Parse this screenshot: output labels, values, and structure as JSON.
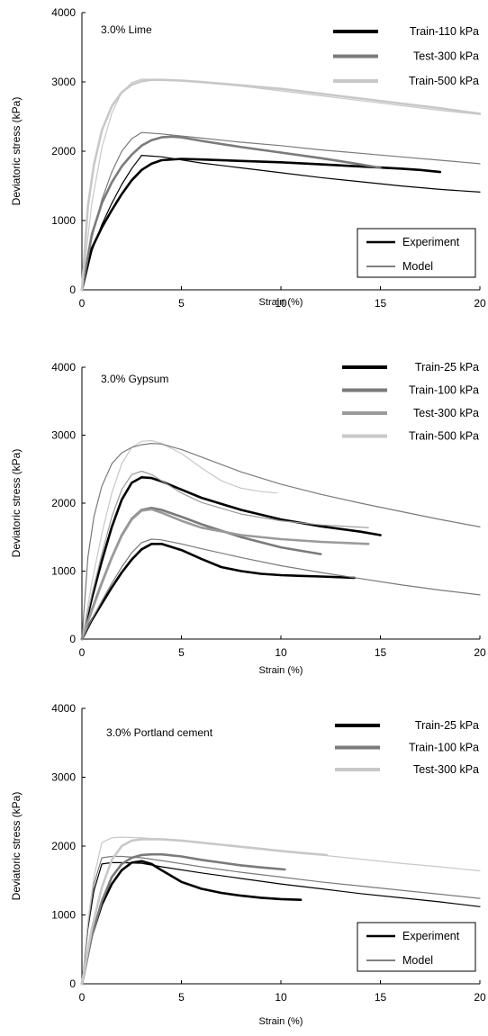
{
  "colors": {
    "black": "#000000",
    "dark_gray": "#7a7a7a",
    "mid_gray": "#9a9a9a",
    "light_gray": "#c8c8c8"
  },
  "chart_data": [
    {
      "type": "line",
      "annotation": "3.0% Lime",
      "xlabel": "Strain (%)",
      "ylabel": "Deviatoric stress (kPa)",
      "xlim": [
        0,
        20
      ],
      "ylim": [
        0,
        4000
      ],
      "xticks": [
        0,
        5,
        10,
        15,
        20
      ],
      "yticks": [
        0,
        1000,
        2000,
        3000,
        4000
      ],
      "grid": false,
      "legend_position": "top-right",
      "legend": [
        {
          "name": "Train-110 kPa",
          "color": "#000000"
        },
        {
          "name": "Test-300 kPa",
          "color": "#7a7a7a"
        },
        {
          "name": "Train-500 kPa",
          "color": "#c8c8c8"
        }
      ],
      "style_legend": [
        {
          "name": "Experiment",
          "style": "thick"
        },
        {
          "name": "Model",
          "style": "thin"
        }
      ],
      "series": [
        {
          "legend": "Train-110 kPa",
          "kind": "experiment",
          "color": "#000000",
          "x": [
            0,
            0.5,
            1,
            1.5,
            2,
            2.5,
            3,
            3.5,
            4,
            5,
            6,
            8,
            10,
            12,
            14,
            16,
            17,
            18
          ],
          "y": [
            0,
            600,
            900,
            1150,
            1380,
            1580,
            1730,
            1820,
            1870,
            1890,
            1880,
            1860,
            1840,
            1810,
            1780,
            1750,
            1730,
            1700
          ]
        },
        {
          "legend": "Train-110 kPa",
          "kind": "model",
          "color": "#000000",
          "x": [
            0,
            0.5,
            1,
            1.5,
            2,
            2.5,
            3,
            4,
            6,
            8,
            10,
            12,
            14,
            16,
            18,
            20
          ],
          "y": [
            0,
            560,
            940,
            1250,
            1520,
            1750,
            1940,
            1920,
            1830,
            1760,
            1690,
            1620,
            1560,
            1500,
            1450,
            1410
          ]
        },
        {
          "legend": "Test-300 kPa",
          "kind": "experiment",
          "color": "#7a7a7a",
          "x": [
            0,
            0.5,
            1,
            1.5,
            2,
            2.5,
            3,
            3.5,
            4,
            4.5,
            5,
            6,
            8,
            10,
            12,
            14,
            15
          ],
          "y": [
            0,
            800,
            1250,
            1550,
            1780,
            1950,
            2080,
            2160,
            2200,
            2210,
            2200,
            2150,
            2060,
            1980,
            1900,
            1810,
            1760
          ]
        },
        {
          "legend": "Test-300 kPa",
          "kind": "model",
          "color": "#7a7a7a",
          "x": [
            0,
            0.5,
            1,
            1.5,
            2,
            2.5,
            3,
            4,
            6,
            8,
            10,
            12,
            14,
            16,
            18,
            20
          ],
          "y": [
            0,
            750,
            1300,
            1700,
            2000,
            2180,
            2270,
            2250,
            2190,
            2130,
            2080,
            2020,
            1970,
            1920,
            1870,
            1820
          ]
        },
        {
          "legend": "Train-500 kPa",
          "kind": "experiment",
          "color": "#c8c8c8",
          "x": [
            0,
            0.3,
            0.6,
            1,
            1.5,
            2,
            2.5,
            3,
            3.5,
            4,
            5,
            6,
            8,
            10,
            12,
            14,
            16,
            18,
            20
          ],
          "y": [
            0,
            1200,
            1800,
            2300,
            2650,
            2850,
            2960,
            3010,
            3030,
            3030,
            3020,
            3000,
            2950,
            2900,
            2830,
            2760,
            2690,
            2620,
            2540
          ]
        },
        {
          "legend": "Train-500 kPa",
          "kind": "model",
          "color": "#c8c8c8",
          "x": [
            0,
            0.5,
            1,
            1.5,
            2,
            2.5,
            3,
            4,
            6,
            8,
            10,
            12,
            14,
            16,
            18,
            20
          ],
          "y": [
            0,
            1250,
            2050,
            2550,
            2850,
            2990,
            3040,
            3030,
            2990,
            2940,
            2870,
            2800,
            2730,
            2660,
            2590,
            2530
          ]
        }
      ]
    },
    {
      "type": "line",
      "annotation": "3.0% Gypsum",
      "xlabel": "Strain (%)",
      "ylabel": "Deviatoric stress (kPa)",
      "xlim": [
        0,
        20
      ],
      "ylim": [
        0,
        4000
      ],
      "xticks": [
        0,
        5,
        10,
        15,
        20
      ],
      "yticks": [
        0,
        1000,
        2000,
        3000,
        4000
      ],
      "grid": false,
      "legend_position": "top-right",
      "legend": [
        {
          "name": "Train-25 kPa",
          "color": "#000000"
        },
        {
          "name": "Train-100 kPa",
          "color": "#7a7a7a"
        },
        {
          "name": "Test-300 kPa",
          "color": "#9a9a9a"
        },
        {
          "name": "Train-500 kPa",
          "color": "#c8c8c8"
        }
      ],
      "series": [
        {
          "legend": "Train-25 kPa",
          "kind": "experiment",
          "color": "#000000",
          "x": [
            0,
            0.5,
            1,
            1.5,
            2,
            2.5,
            3,
            3.5,
            4,
            5,
            6,
            7,
            8,
            9,
            10,
            11,
            12,
            13,
            13.7
          ],
          "y": [
            0,
            280,
            520,
            760,
            980,
            1170,
            1320,
            1400,
            1400,
            1310,
            1180,
            1060,
            1000,
            960,
            940,
            930,
            920,
            910,
            900
          ]
        },
        {
          "legend": "Train-25 kPa",
          "kind": "experiment",
          "color": "#000000",
          "x": [
            0,
            0.5,
            1,
            1.5,
            2,
            2.5,
            3,
            3.5,
            4,
            5,
            6,
            8,
            10,
            12,
            14,
            15
          ],
          "y": [
            0,
            600,
            1150,
            1650,
            2050,
            2300,
            2380,
            2370,
            2320,
            2200,
            2080,
            1900,
            1760,
            1660,
            1580,
            1530
          ]
        },
        {
          "legend": "Train-100 kPa",
          "kind": "model",
          "color": "#7a7a7a",
          "x": [
            0,
            0.5,
            1,
            1.5,
            2,
            2.5,
            3,
            3.5,
            4,
            5,
            6,
            8,
            10,
            12,
            14,
            16,
            18,
            20
          ],
          "y": [
            0,
            290,
            560,
            820,
            1060,
            1270,
            1420,
            1470,
            1460,
            1400,
            1330,
            1200,
            1080,
            980,
            890,
            800,
            720,
            650
          ]
        },
        {
          "legend": "Train-100 kPa",
          "kind": "experiment",
          "color": "#7a7a7a",
          "x": [
            0,
            0.5,
            1,
            1.5,
            2,
            2.5,
            3,
            3.5,
            4,
            5,
            6,
            8,
            10,
            12
          ],
          "y": [
            0,
            430,
            830,
            1200,
            1530,
            1770,
            1900,
            1930,
            1900,
            1800,
            1690,
            1500,
            1350,
            1250
          ]
        },
        {
          "legend": "Test-300 kPa",
          "kind": "model",
          "color": "#9a9a9a",
          "x": [
            0,
            0.5,
            1,
            1.5,
            2,
            2.5,
            3,
            3.5,
            4,
            5,
            6,
            8,
            10,
            12,
            14.4
          ],
          "y": [
            0,
            660,
            1250,
            1800,
            2200,
            2420,
            2470,
            2420,
            2330,
            2150,
            2010,
            1840,
            1740,
            1680,
            1640
          ]
        },
        {
          "legend": "Test-300 kPa",
          "kind": "experiment",
          "color": "#9a9a9a",
          "x": [
            0,
            0.5,
            1,
            1.5,
            2,
            2.5,
            3,
            3.5,
            4,
            5,
            6,
            8,
            10,
            12,
            14.4
          ],
          "y": [
            0,
            420,
            820,
            1200,
            1520,
            1760,
            1890,
            1910,
            1860,
            1740,
            1640,
            1530,
            1470,
            1430,
            1400
          ]
        },
        {
          "legend": "Train-500 kPa",
          "kind": "model",
          "color": "#c8c8c8",
          "x": [
            0,
            0.5,
            1,
            1.5,
            2,
            2.5,
            3,
            3.5,
            4,
            5,
            6,
            7,
            8,
            9,
            9.8
          ],
          "y": [
            0,
            830,
            1550,
            2150,
            2580,
            2820,
            2910,
            2920,
            2880,
            2730,
            2520,
            2330,
            2220,
            2170,
            2150
          ]
        },
        {
          "legend": "Train-500 kPa",
          "kind": "model",
          "color": "#7a7a7a",
          "x": [
            0,
            0.3,
            0.6,
            1,
            1.5,
            2,
            2.5,
            3,
            3.5,
            4,
            5,
            6,
            8,
            10,
            12,
            14,
            16,
            18,
            20
          ],
          "y": [
            0,
            1200,
            1800,
            2250,
            2580,
            2740,
            2820,
            2860,
            2880,
            2870,
            2790,
            2680,
            2460,
            2280,
            2130,
            2000,
            1880,
            1760,
            1650
          ]
        }
      ]
    },
    {
      "type": "line",
      "annotation": "3.0% Portland cement",
      "xlabel": "Strain (%)",
      "ylabel": "Deviatoric stress (kPa)",
      "xlim": [
        0,
        20
      ],
      "ylim": [
        0,
        4000
      ],
      "xticks": [
        0,
        5,
        10,
        15,
        20
      ],
      "yticks": [
        0,
        1000,
        2000,
        3000,
        4000
      ],
      "grid": false,
      "legend_position": "top-right",
      "legend": [
        {
          "name": "Train-25 kPa",
          "color": "#000000"
        },
        {
          "name": "Train-100 kPa",
          "color": "#7a7a7a"
        },
        {
          "name": "Test-300 kPa",
          "color": "#c8c8c8"
        }
      ],
      "style_legend": [
        {
          "name": "Experiment",
          "style": "thick"
        },
        {
          "name": "Model",
          "style": "thin"
        }
      ],
      "series": [
        {
          "legend": "Train-25 kPa",
          "kind": "experiment",
          "color": "#000000",
          "x": [
            0,
            0.5,
            1,
            1.5,
            2,
            2.5,
            3,
            3.5,
            4,
            5,
            6,
            7,
            8,
            9,
            10,
            11
          ],
          "y": [
            0,
            700,
            1150,
            1450,
            1650,
            1760,
            1780,
            1740,
            1650,
            1480,
            1380,
            1320,
            1280,
            1250,
            1230,
            1220
          ]
        },
        {
          "legend": "Train-25 kPa",
          "kind": "model",
          "color": "#000000",
          "x": [
            0,
            0.3,
            0.6,
            1,
            1.5,
            2,
            3,
            4,
            6,
            8,
            10,
            12,
            14,
            16,
            18,
            20
          ],
          "y": [
            0,
            800,
            1350,
            1740,
            1760,
            1760,
            1750,
            1700,
            1610,
            1530,
            1450,
            1380,
            1310,
            1250,
            1190,
            1120
          ]
        },
        {
          "legend": "Train-100 kPa",
          "kind": "experiment",
          "color": "#7a7a7a",
          "x": [
            0,
            0.5,
            1,
            1.5,
            2,
            2.5,
            3,
            3.5,
            4,
            5,
            6,
            7,
            8,
            9,
            10.2
          ],
          "y": [
            0,
            700,
            1200,
            1550,
            1740,
            1830,
            1870,
            1880,
            1880,
            1850,
            1800,
            1760,
            1720,
            1690,
            1660
          ]
        },
        {
          "legend": "Train-100 kPa",
          "kind": "model",
          "color": "#7a7a7a",
          "x": [
            0,
            0.3,
            0.6,
            1,
            1.5,
            2,
            3,
            4,
            6,
            8,
            10,
            12,
            14,
            16,
            18,
            20
          ],
          "y": [
            0,
            850,
            1450,
            1830,
            1850,
            1850,
            1830,
            1790,
            1700,
            1620,
            1550,
            1480,
            1420,
            1360,
            1300,
            1240
          ]
        },
        {
          "legend": "Test-300 kPa",
          "kind": "experiment",
          "color": "#c8c8c8",
          "x": [
            0,
            0.5,
            1,
            1.5,
            2,
            2.5,
            3,
            4,
            5,
            6,
            7,
            8,
            9,
            10,
            11,
            12.3
          ],
          "y": [
            0,
            800,
            1400,
            1800,
            2000,
            2080,
            2100,
            2100,
            2080,
            2050,
            2020,
            1990,
            1960,
            1930,
            1900,
            1870
          ]
        },
        {
          "legend": "Test-300 kPa",
          "kind": "model",
          "color": "#c8c8c8",
          "x": [
            0,
            0.3,
            0.6,
            1,
            1.5,
            2,
            3,
            4,
            6,
            8,
            10,
            12,
            14,
            16,
            18,
            20
          ],
          "y": [
            0,
            900,
            1550,
            2050,
            2120,
            2130,
            2120,
            2100,
            2050,
            1990,
            1930,
            1870,
            1810,
            1750,
            1700,
            1640
          ]
        }
      ]
    }
  ]
}
